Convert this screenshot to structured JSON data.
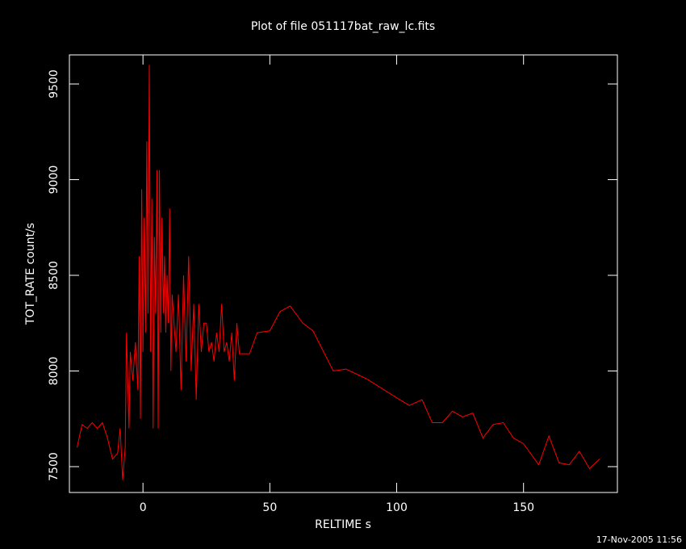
{
  "chart_data": {
    "type": "line",
    "title": "Plot of file 051117bat_raw_lc.fits",
    "xlabel": "RELTIME  s",
    "ylabel": "TOT_RATE  count/s",
    "footer": "17-Nov-2005 11:56",
    "color": "#ff0000",
    "xlim": [
      -29,
      187
    ],
    "xticks": [
      0,
      50,
      100,
      150
    ],
    "ylim": [
      7365,
      9652
    ],
    "yticks": [
      7500,
      8000,
      8500,
      9000,
      9500
    ],
    "x": [
      -26,
      -24,
      -22,
      -20,
      -18,
      -16,
      -14,
      -12,
      -10,
      -9,
      -8,
      -7,
      -6.5,
      -5.5,
      -5,
      -4,
      -3,
      -2,
      -1.5,
      -1,
      -0.5,
      0,
      0.5,
      1,
      1.5,
      2,
      2.5,
      3,
      3.5,
      4,
      4.5,
      5,
      5.5,
      6,
      6.5,
      7,
      7.5,
      8,
      8.5,
      9,
      9.5,
      10,
      10.5,
      11,
      11.5,
      12,
      13,
      14,
      15,
      16,
      17,
      18,
      19,
      20,
      21,
      22,
      23,
      24,
      25,
      26,
      27,
      28,
      29,
      30,
      31,
      32,
      33,
      34,
      35,
      36,
      37,
      38,
      42,
      45,
      50,
      54,
      58,
      63,
      67,
      75,
      80,
      88,
      94,
      100,
      105,
      110,
      114,
      118,
      122,
      126,
      130,
      134,
      138,
      142,
      146,
      150,
      156,
      160,
      164,
      168,
      172,
      176,
      180
    ],
    "values": [
      7600,
      7720,
      7700,
      7730,
      7700,
      7730,
      7650,
      7540,
      7570,
      7700,
      7430,
      7600,
      8200,
      7700,
      8100,
      7950,
      8150,
      7900,
      8600,
      7750,
      8950,
      8100,
      8800,
      8200,
      9200,
      8300,
      9600,
      8100,
      8900,
      7700,
      8700,
      8300,
      9050,
      7700,
      9050,
      8200,
      8800,
      8300,
      8600,
      8200,
      8500,
      8250,
      8850,
      8000,
      8400,
      8300,
      8100,
      8400,
      7900,
      8500,
      8050,
      8600,
      8000,
      8350,
      7850,
      8350,
      8100,
      8250,
      8250,
      8100,
      8150,
      8050,
      8200,
      8100,
      8350,
      8100,
      8150,
      8050,
      8200,
      7950,
      8250,
      8090,
      8090,
      8200,
      8210,
      8310,
      8340,
      8250,
      8210,
      8000,
      8010,
      7960,
      7910,
      7860,
      7820,
      7850,
      7730,
      7730,
      7790,
      7760,
      7780,
      7650,
      7720,
      7730,
      7650,
      7620,
      7510,
      7660,
      7520,
      7510,
      7580,
      7490,
      7540
    ]
  }
}
